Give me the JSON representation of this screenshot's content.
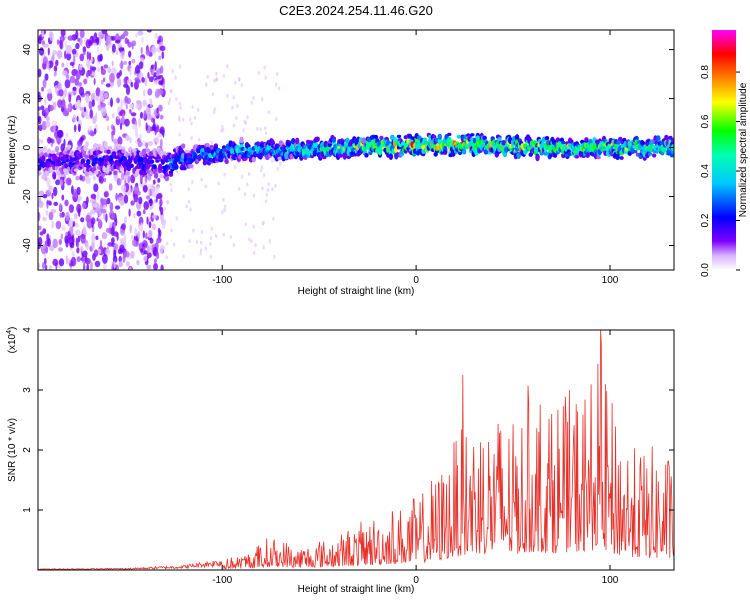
{
  "title": "C2E3.2024.254.11.46.G20",
  "chart_data": [
    {
      "type": "heatmap",
      "xlabel": "Height of straight line (km)",
      "ylabel": "Frequency (Hz)",
      "xlim": [
        -195,
        133
      ],
      "ylim": [
        -50,
        48
      ],
      "xticks": [
        -100,
        0,
        100
      ],
      "yticks": [
        40,
        20,
        0,
        -20,
        -40
      ],
      "colorbar": {
        "label": "Normalized spectral amplitude",
        "range": [
          0.0,
          0.97
        ],
        "ticks": [
          0.0,
          0.2,
          0.4,
          0.6,
          0.8
        ],
        "colormap": [
          "#ffffff",
          "#7f00ff",
          "#0000ff",
          "#00ffff",
          "#00ff00",
          "#ffff00",
          "#ff7f00",
          "#ff0000",
          "#ff00ff"
        ]
      },
      "ridge": {
        "x": [
          -195,
          -160,
          -130,
          -110,
          -90,
          -60,
          -30,
          0,
          30,
          60,
          90,
          133
        ],
        "frequency": [
          -6,
          -5,
          -7,
          -3,
          -1,
          -1,
          0,
          1,
          1,
          0,
          0,
          0
        ],
        "peak_amplitude": [
          0.22,
          0.25,
          0.32,
          0.45,
          0.5,
          0.55,
          0.75,
          0.9,
          0.85,
          0.8,
          0.75,
          0.7
        ]
      }
    },
    {
      "type": "line",
      "xlabel": "Height of straight line (km)",
      "ylabel": "SNR (10 * v/v)",
      "y_multiplier": "(x10",
      "y_multiplier_exp": "4",
      "y_multiplier_close": ")",
      "xlim": [
        -195,
        133
      ],
      "ylim": [
        0,
        4
      ],
      "xticks": [
        -100,
        0,
        100
      ],
      "yticks": [
        1,
        2,
        3,
        4
      ],
      "color": "#e8302a",
      "envelope": {
        "x": [
          -195,
          -150,
          -120,
          -90,
          -75,
          -60,
          -40,
          -20,
          0,
          10,
          20,
          30,
          40,
          50,
          60,
          70,
          80,
          90,
          95,
          100,
          110,
          120,
          133
        ],
        "y": [
          0.02,
          0.03,
          0.08,
          0.25,
          0.55,
          0.4,
          0.6,
          0.9,
          1.2,
          1.5,
          2.2,
          2.7,
          2.7,
          2.6,
          3.0,
          2.8,
          3.0,
          3.1,
          4.0,
          2.7,
          2.2,
          2.0,
          1.9
        ]
      },
      "peaks": [
        {
          "x": 24,
          "y": 3.25
        },
        {
          "x": 95,
          "y": 4.0
        }
      ]
    }
  ]
}
